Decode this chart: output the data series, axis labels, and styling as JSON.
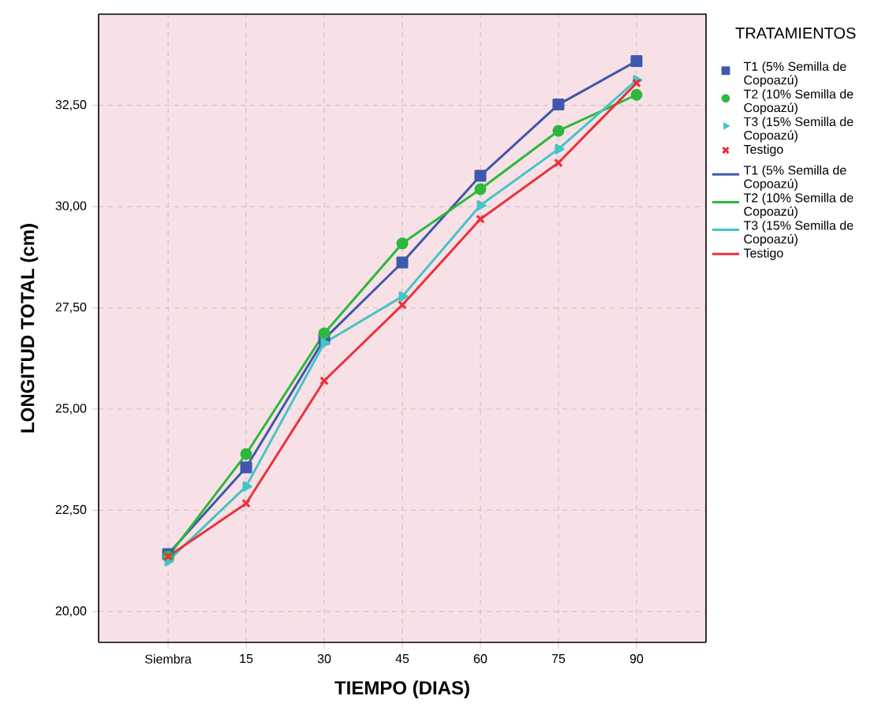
{
  "chart_data": {
    "type": "line",
    "xlabel": "TIEMPO (DIAS)",
    "ylabel": "LONGITUD TOTAL (cm)",
    "legend_title": "TRATAMIENTOS",
    "categories": [
      "Siembra",
      "15",
      "30",
      "45",
      "60",
      "75",
      "90"
    ],
    "ylim": [
      19.24,
      34.75
    ],
    "yticks": [
      {
        "value": 20,
        "label": "20,00"
      },
      {
        "value": 22.5,
        "label": "22,50"
      },
      {
        "value": 25,
        "label": "25,00"
      },
      {
        "value": 27.5,
        "label": "27,50"
      },
      {
        "value": 30,
        "label": "30,00"
      },
      {
        "value": 32.5,
        "label": "32,50"
      }
    ],
    "grid": true,
    "legend": "right",
    "line_style": "solid",
    "series": [
      {
        "name": "T1 (5% Semilla de Copoazú)",
        "color": "#3e58ac",
        "marker": "square",
        "values": [
          21.42,
          23.56,
          26.73,
          28.62,
          30.76,
          32.52,
          33.59
        ]
      },
      {
        "name": "T2 (10% Semilla de Copoazú)",
        "color": "#2db83d",
        "marker": "circle",
        "values": [
          21.36,
          23.89,
          26.87,
          29.09,
          30.43,
          31.87,
          32.76
        ]
      },
      {
        "name": "T3 (15% Semilla de Copoazú)",
        "color": "#45c4c4",
        "marker": "triangle",
        "values": [
          21.25,
          23.09,
          26.63,
          27.78,
          30.03,
          31.42,
          33.12
        ]
      },
      {
        "name": "Testigo",
        "color": "#e8323c",
        "marker": "cross",
        "values": [
          21.36,
          22.67,
          25.7,
          27.57,
          29.69,
          31.08,
          33.05
        ]
      }
    ]
  }
}
